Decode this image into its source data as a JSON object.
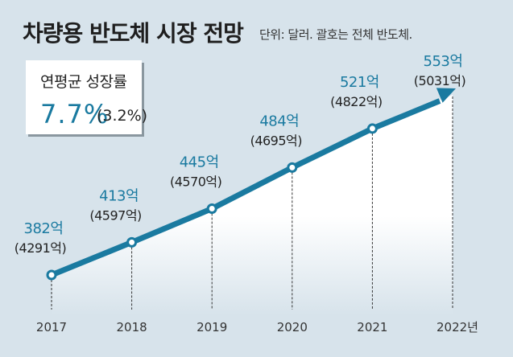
{
  "header": {
    "title": "차량용 반도체 시장 전망",
    "subtitle": "단위: 달러. 괄호는 전체 반도체."
  },
  "growth_box": {
    "label": "연평균 성장률",
    "value": "7.7%",
    "sub_value": "(3.2%)"
  },
  "colors": {
    "accent": "#1a7aa0",
    "background": "#d7e3eb",
    "text": "#222222"
  },
  "chart_data": {
    "type": "line",
    "title": "차량용 반도체 시장 전망",
    "subtitle": "단위: 달러. 괄호는 전체 반도체.",
    "xlabel": "",
    "ylabel": "",
    "categories": [
      "2017",
      "2018",
      "2019",
      "2020",
      "2021",
      "2022년"
    ],
    "series": [
      {
        "name": "차량용 반도체",
        "values": [
          382,
          413,
          445,
          484,
          521,
          553
        ],
        "unit": "억 달러"
      },
      {
        "name": "전체 반도체",
        "values": [
          4291,
          4597,
          4570,
          4695,
          4822,
          5031
        ],
        "unit": "억 달러"
      }
    ],
    "value_labels": [
      "382억",
      "413억",
      "445억",
      "484억",
      "521억",
      "553억"
    ],
    "total_labels": [
      "(4291억)",
      "(4597억)",
      "(4570억)",
      "(4695억)",
      "(4822억)",
      "(5031억)"
    ],
    "ylim": [
      340,
      590
    ],
    "grid": false,
    "legend": "none",
    "last_point_arrow": true
  }
}
